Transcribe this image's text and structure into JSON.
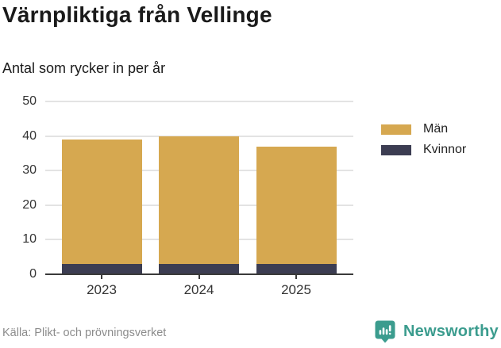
{
  "header": {
    "title": "Värnpliktiga från Vellinge",
    "subtitle": "Antal som rycker in per år"
  },
  "chart_data": {
    "type": "bar",
    "stacked": true,
    "title": "Värnpliktiga från Vellinge",
    "subtitle": "Antal som rycker in per år",
    "categories": [
      "2023",
      "2024",
      "2025"
    ],
    "series": [
      {
        "name": "Män",
        "color": "#d6a850",
        "values": [
          36,
          37,
          34
        ]
      },
      {
        "name": "Kvinnor",
        "color": "#3c3d52",
        "values": [
          3,
          3,
          3
        ]
      }
    ],
    "totals": [
      39,
      40,
      37
    ],
    "xlabel": "",
    "ylabel": "",
    "ylim": [
      0,
      50
    ],
    "yticks": [
      0,
      10,
      20,
      30,
      40,
      50
    ],
    "grid": "horizontal",
    "legend_position": "right"
  },
  "legend": {
    "items": [
      {
        "label": "Män",
        "color": "#d6a850"
      },
      {
        "label": "Kvinnor",
        "color": "#3c3d52"
      }
    ]
  },
  "footer": {
    "source": "Källa: Plikt- och prövningsverket",
    "brand": "Newsworthy"
  },
  "colors": {
    "men": "#d6a850",
    "women": "#3c3d52",
    "brand_teal": "#3b9c8e",
    "gridline": "#e3e3e3",
    "axis": "#3a3a3a",
    "text_dark": "#1a1a1a",
    "text_muted": "#8c8c8c"
  }
}
